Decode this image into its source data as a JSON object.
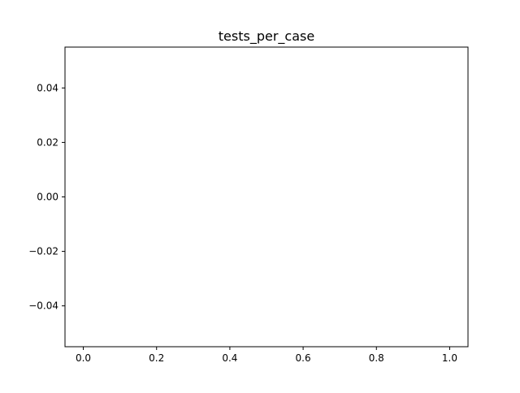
{
  "chart_data": {
    "type": "line",
    "title": "tests_per_case",
    "xlabel": "",
    "ylabel": "",
    "series": [],
    "x": [],
    "xlim": [
      -0.05,
      1.05
    ],
    "ylim": [
      -0.055,
      0.055
    ],
    "xticks": [
      0.0,
      0.2,
      0.4,
      0.6,
      0.8,
      1.0
    ],
    "xtick_labels": [
      "0.0",
      "0.2",
      "0.4",
      "0.6",
      "0.8",
      "1.0"
    ],
    "yticks": [
      0.04,
      0.02,
      0.0,
      -0.02,
      -0.04
    ],
    "ytick_labels": [
      "0.04",
      "0.02",
      "0.00",
      "−0.02",
      "−0.04"
    ],
    "grid": false,
    "legend": "none",
    "colors": {
      "axes": "#000000",
      "background": "#ffffff"
    }
  }
}
